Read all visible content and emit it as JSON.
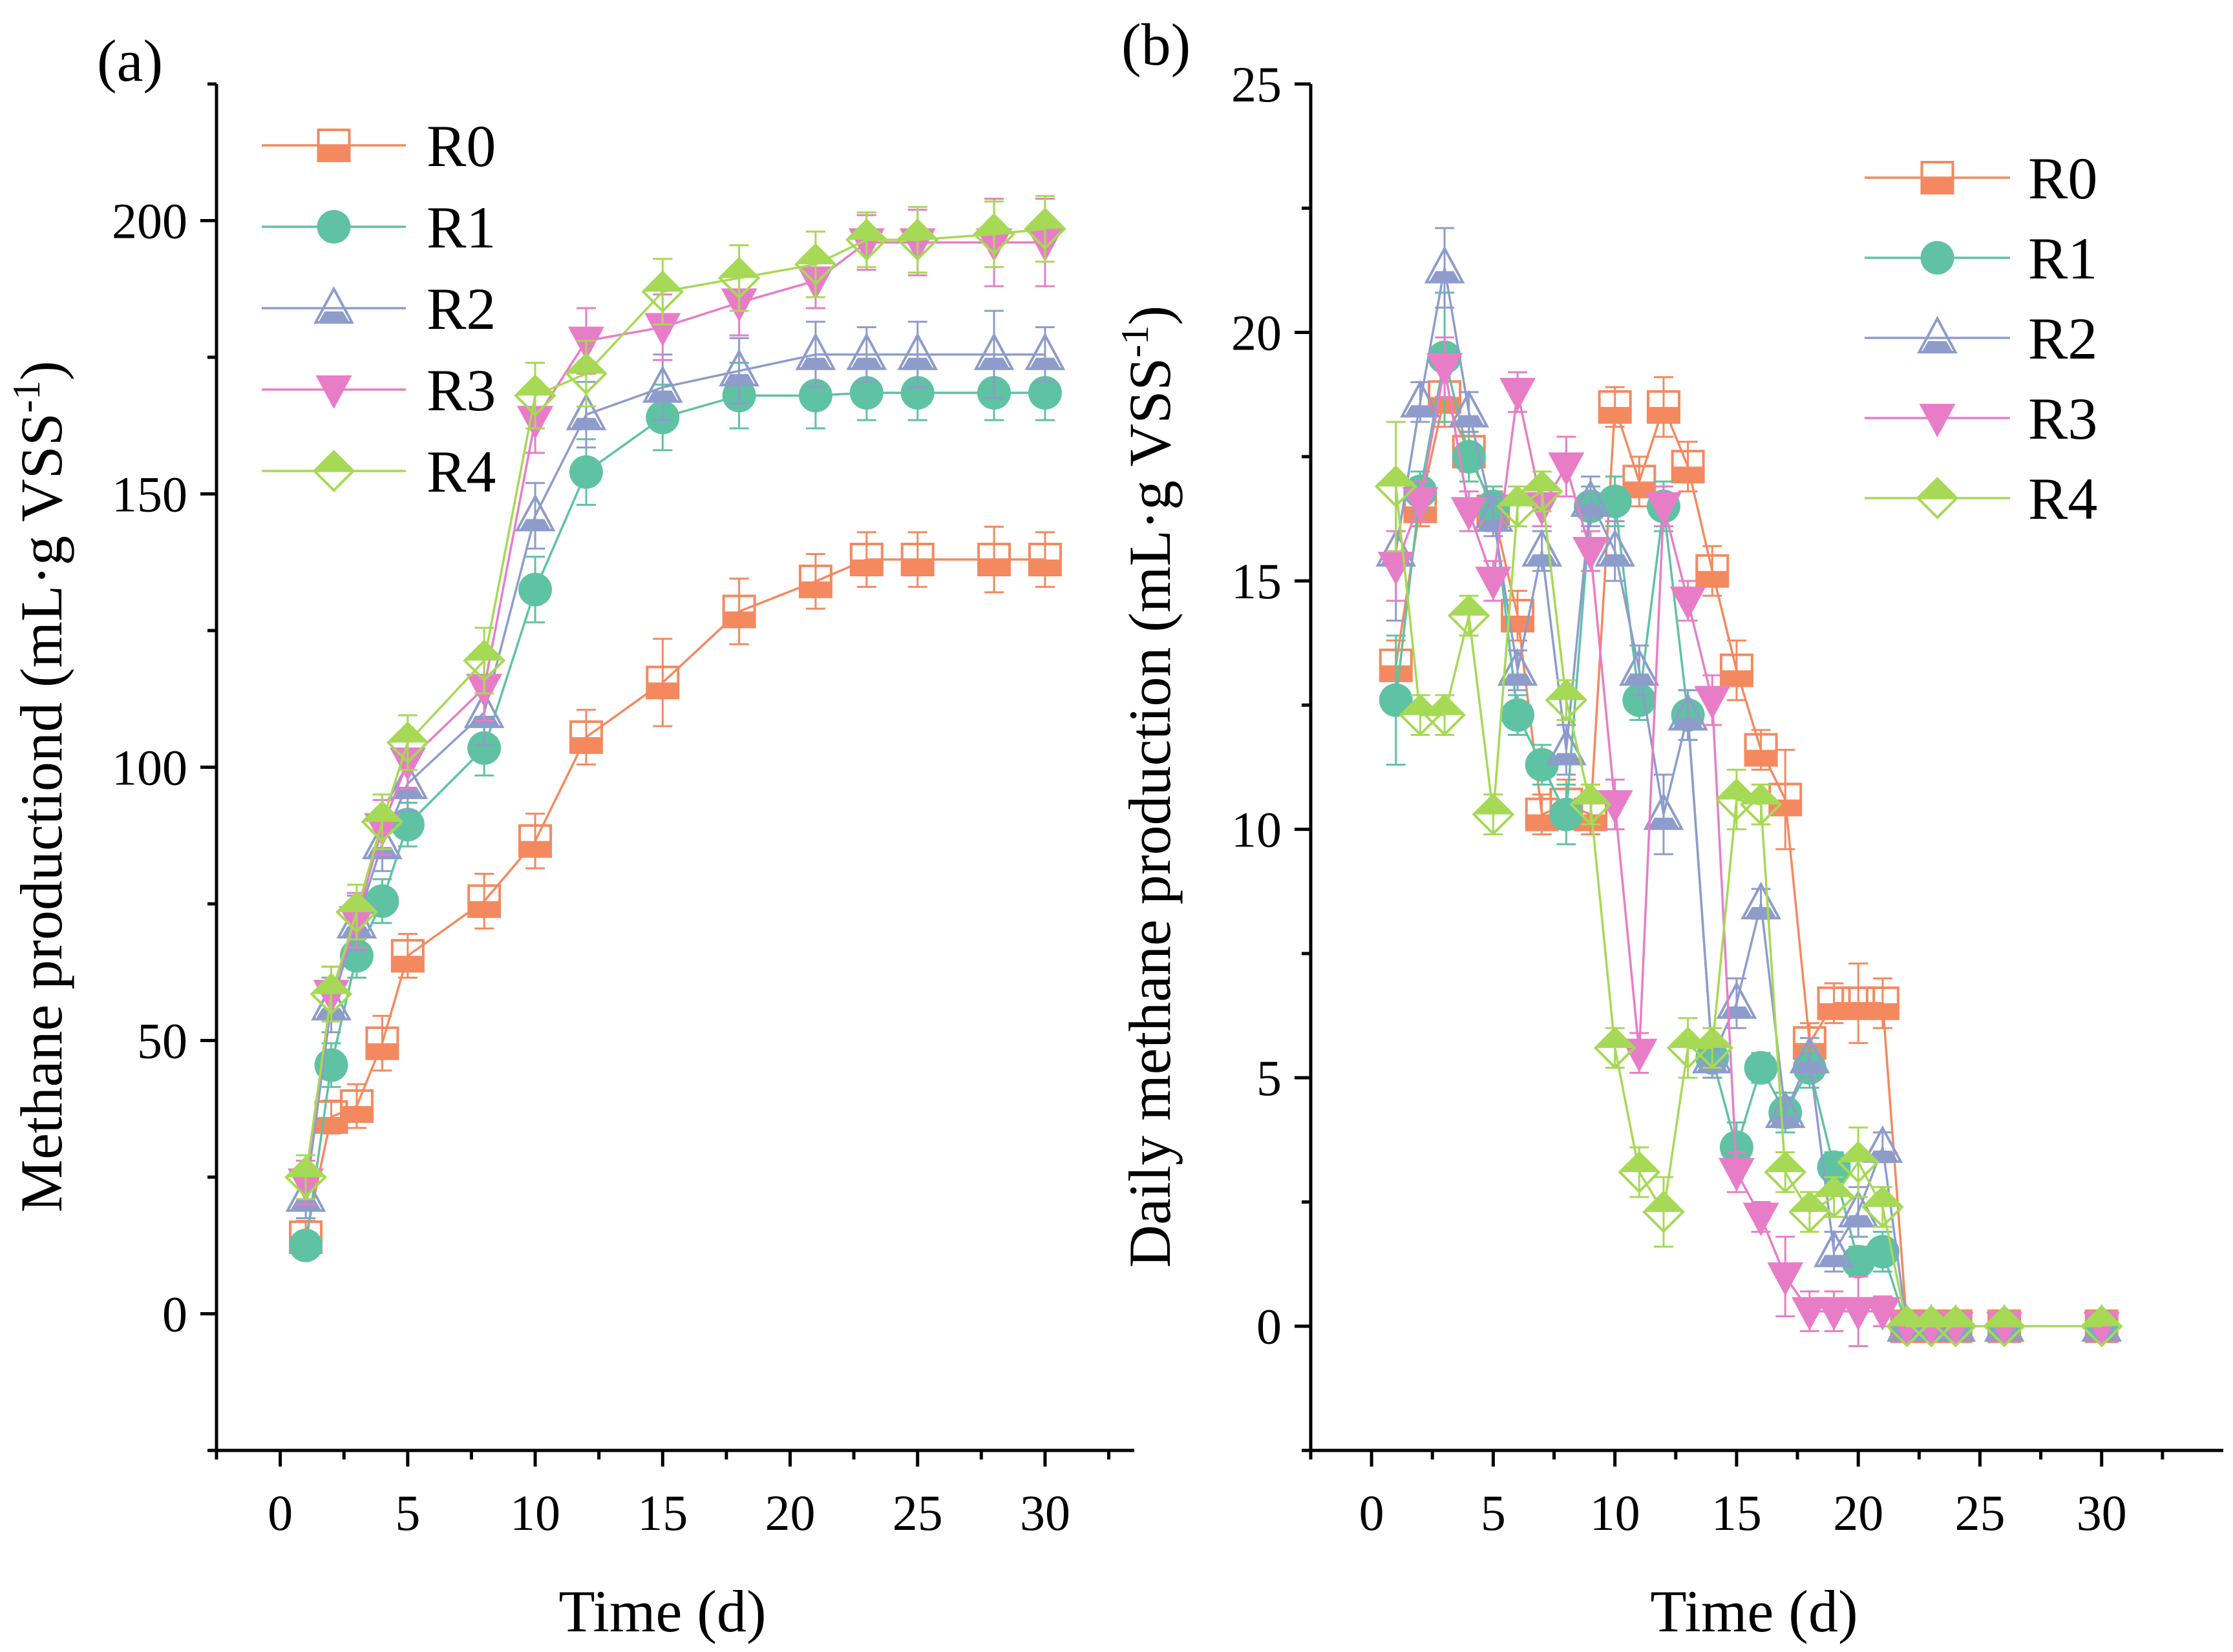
{
  "colors": {
    "R0": "#F4895F",
    "R1": "#5FC2A3",
    "R2": "#8E9CCC",
    "R3": "#E87DC7",
    "R4": "#A6D955",
    "axis": "#000000"
  },
  "chart_data": [
    {
      "panel_label": "(a)",
      "type": "line",
      "title": "",
      "xlabel": "Time (d)",
      "ylabel_main": "Methane productiond (mL·g VSS",
      "ylabel_sup": "-1",
      "ylabel_end": ")",
      "xlim": [
        -2.5,
        33.5
      ],
      "ylim": [
        -25,
        225
      ],
      "xticks": [
        0,
        5,
        10,
        15,
        20,
        25,
        30
      ],
      "xtick_labels": [
        "0",
        "5",
        "10",
        "15",
        "20",
        "25",
        "30"
      ],
      "yticks": [
        0,
        50,
        100,
        150,
        200
      ],
      "ytick_labels": [
        "0",
        "50",
        "100",
        "150",
        "200"
      ],
      "legend_position": "top-left",
      "x": [
        1,
        2,
        3,
        4,
        5,
        8,
        10,
        12,
        15,
        18,
        21,
        23,
        25,
        28,
        30
      ],
      "series": [
        {
          "name": "R0",
          "marker": "square",
          "values": [
            14,
            36,
            38,
            49.5,
            65.5,
            75.5,
            86.5,
            105.5,
            115.5,
            128.5,
            134,
            138,
            138,
            138,
            138
          ],
          "errors": [
            3,
            3,
            4,
            5,
            4,
            5,
            5,
            5,
            8,
            6,
            5,
            5,
            5,
            6,
            5
          ]
        },
        {
          "name": "R1",
          "marker": "circle",
          "values": [
            12.5,
            45.5,
            65.5,
            75.5,
            89.5,
            103.5,
            132.5,
            154,
            164,
            168,
            168,
            168.5,
            168.5,
            168.5,
            168.5
          ],
          "errors": [
            2,
            4,
            4,
            4,
            4,
            5,
            6,
            6,
            6,
            6,
            6,
            5,
            5,
            5,
            5
          ]
        },
        {
          "name": "R2",
          "marker": "triangle-up",
          "values": [
            21.5,
            56.5,
            71.5,
            86,
            97,
            110,
            146,
            164.5,
            169.5,
            172.5,
            175.5,
            175.5,
            175.5,
            175.5,
            175.5
          ],
          "errors": [
            4,
            5,
            5,
            5,
            5,
            6,
            6,
            6,
            6,
            6,
            6,
            5,
            6,
            8,
            5
          ]
        },
        {
          "name": "R3",
          "marker": "triangle-down",
          "values": [
            24,
            58.5,
            72,
            89,
            101,
            114.5,
            163.5,
            178,
            180.5,
            185,
            189,
            196,
            196,
            196,
            196
          ],
          "errors": [
            4,
            5,
            5,
            5,
            5,
            6,
            6,
            6,
            6,
            6,
            5,
            5,
            6,
            8,
            8
          ]
        },
        {
          "name": "R4",
          "marker": "diamond",
          "values": [
            25,
            58.5,
            73.5,
            90,
            104.5,
            119.5,
            168,
            172,
            187,
            189.5,
            192,
            196.5,
            196.5,
            197.5,
            198.5
          ],
          "errors": [
            4,
            5,
            5,
            5,
            5,
            6,
            6,
            6,
            6,
            6,
            6,
            5,
            6,
            6,
            6
          ]
        }
      ]
    },
    {
      "panel_label": "(b)",
      "type": "line",
      "title": "",
      "xlabel": "Time (d)",
      "ylabel_main": "Daily methane production (mL·g VSS",
      "ylabel_sup": "-1",
      "ylabel_end": ")",
      "xlim": [
        -2.5,
        35
      ],
      "ylim": [
        -2.5,
        25
      ],
      "xticks": [
        0,
        5,
        10,
        15,
        20,
        25,
        30
      ],
      "xtick_labels": [
        "0",
        "5",
        "10",
        "15",
        "20",
        "25",
        "30"
      ],
      "yticks": [
        0,
        5,
        10,
        15,
        20,
        25
      ],
      "ytick_labels": [
        "0",
        "5",
        "10",
        "15",
        "20",
        "25"
      ],
      "legend_position": "top-right",
      "x": [
        1,
        2,
        3,
        4,
        5,
        6,
        7,
        8,
        9,
        10,
        11,
        12,
        13,
        14,
        15,
        16,
        17,
        18,
        19,
        20,
        21,
        22,
        23,
        24,
        26,
        30
      ],
      "series": [
        {
          "name": "R0",
          "marker": "square",
          "values": [
            13.3,
            16.5,
            18.7,
            17.6,
            16.4,
            14.3,
            10.3,
            10.5,
            10.3,
            18.5,
            17.0,
            18.5,
            17.3,
            15.2,
            13.2,
            11.6,
            10.6,
            5.7,
            6.5,
            6.5,
            6.5,
            0,
            0,
            0,
            0,
            0
          ],
          "errors": [
            0.5,
            0.4,
            0.6,
            0.4,
            0.4,
            0.5,
            0.4,
            0.5,
            0.4,
            0.4,
            0.5,
            0.6,
            0.5,
            0.5,
            0.6,
            0.4,
            1.0,
            0.4,
            0.4,
            0.8,
            0.5,
            0,
            0,
            0,
            0,
            0
          ]
        },
        {
          "name": "R1",
          "marker": "circle",
          "values": [
            12.6,
            16.8,
            19.5,
            17.5,
            16.5,
            12.3,
            11.3,
            10.3,
            16.5,
            16.6,
            12.6,
            16.5,
            12.3,
            5.4,
            3.6,
            5.2,
            4.3,
            5.2,
            3.2,
            1.3,
            1.5,
            0,
            0,
            0,
            0,
            0
          ],
          "errors": [
            1.3,
            0.4,
            1.3,
            0.5,
            0.4,
            0.4,
            0.4,
            0.6,
            0.4,
            0.5,
            0.4,
            0.5,
            0.5,
            0.4,
            0.5,
            0.3,
            0.4,
            0.4,
            0.3,
            0.3,
            0.4,
            0,
            0,
            0,
            0,
            0
          ]
        },
        {
          "name": "R2",
          "marker": "triangle-up",
          "values": [
            15.6,
            18.6,
            21.3,
            18.4,
            16.3,
            13.2,
            15.6,
            11.6,
            16.6,
            15.6,
            13.2,
            10.3,
            12.3,
            5.4,
            6.5,
            8.5,
            4.3,
            5.4,
            1.5,
            2.3,
            3.6,
            0,
            0,
            0,
            0,
            0
          ],
          "errors": [
            1.4,
            0.4,
            0.8,
            0.4,
            0.4,
            0.4,
            0.4,
            0.5,
            0.5,
            0.6,
            0.5,
            0.8,
            0.5,
            0.4,
            0.5,
            0.3,
            0.3,
            0.4,
            0.4,
            0.5,
            0.3,
            0,
            0,
            0,
            0,
            0
          ]
        },
        {
          "name": "R3",
          "marker": "triangle-down",
          "values": [
            15.3,
            16.6,
            19.3,
            16.4,
            15.0,
            18.8,
            16.5,
            17.3,
            15.6,
            10.5,
            5.5,
            16.5,
            14.6,
            12.6,
            3.1,
            2.2,
            1.0,
            0.3,
            0.3,
            0.3,
            0.3,
            0,
            0,
            0,
            0,
            0
          ],
          "errors": [
            0.7,
            0.4,
            0.6,
            0.4,
            0.4,
            0.4,
            0.4,
            0.6,
            0.4,
            0.5,
            0.4,
            0.4,
            0.4,
            0.5,
            0.4,
            0.3,
            0.8,
            0.4,
            0.4,
            0.7,
            0.3,
            0,
            0,
            0,
            0,
            0
          ]
        },
        {
          "name": "R4",
          "marker": "diamond",
          "values": [
            16.9,
            12.3,
            12.3,
            14.3,
            10.3,
            16.5,
            16.8,
            12.6,
            10.5,
            5.6,
            3.1,
            2.3,
            5.6,
            5.6,
            10.6,
            10.5,
            3.1,
            2.3,
            2.6,
            3.3,
            2.4,
            0,
            0,
            0,
            0,
            0
          ],
          "errors": [
            1.3,
            0.4,
            0.4,
            0.4,
            0.4,
            0.4,
            0.4,
            0.4,
            0.4,
            0.4,
            0.5,
            0.7,
            0.6,
            0.4,
            0.6,
            0.4,
            0.4,
            0.4,
            0.4,
            0.7,
            0.4,
            0,
            0,
            0,
            0,
            0
          ]
        }
      ]
    }
  ]
}
